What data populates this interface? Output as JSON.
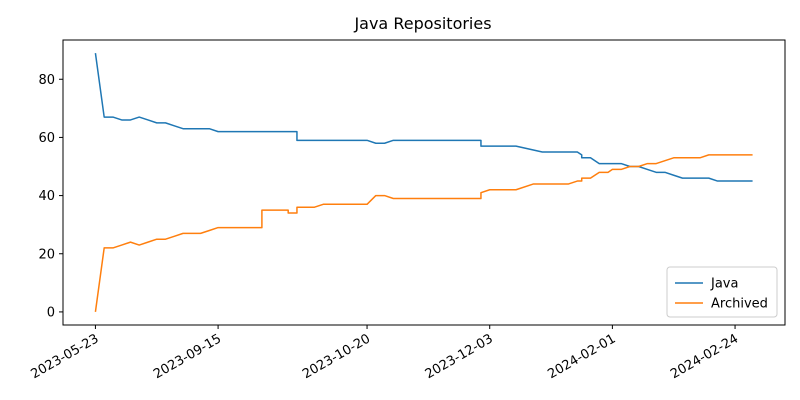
{
  "chart_data": {
    "type": "line",
    "title": "Java Repositories",
    "xlabel": "",
    "ylabel": "",
    "x_tick_labels": [
      "2023-05-23",
      "2023-09-15",
      "2023-10-20",
      "2023-12-03",
      "2024-02-01",
      "2024-02-24"
    ],
    "x_tick_index": [
      0,
      14,
      31,
      45,
      59,
      73
    ],
    "x_range_index": [
      -3.7,
      78.7
    ],
    "ylim": [
      -4.5,
      93.5
    ],
    "y_ticks": [
      0,
      20,
      40,
      60,
      80
    ],
    "grid": false,
    "legend_position": "lower-right",
    "series": [
      {
        "name": "Java",
        "color": "#1f77b4",
        "points": [
          [
            0,
            89
          ],
          [
            1,
            67
          ],
          [
            2,
            67
          ],
          [
            3,
            66
          ],
          [
            4,
            66
          ],
          [
            5,
            67
          ],
          [
            6,
            66
          ],
          [
            7,
            65
          ],
          [
            8,
            65
          ],
          [
            9,
            64
          ],
          [
            10,
            63
          ],
          [
            11,
            63
          ],
          [
            12,
            63
          ],
          [
            13,
            63
          ],
          [
            14,
            62
          ],
          [
            15,
            62
          ],
          [
            16,
            62
          ],
          [
            17,
            62
          ],
          [
            18,
            62
          ],
          [
            19,
            62
          ],
          [
            20,
            62
          ],
          [
            21,
            62
          ],
          [
            22,
            62
          ],
          [
            23,
            62
          ],
          [
            23,
            59
          ],
          [
            24,
            59
          ],
          [
            25,
            59
          ],
          [
            26,
            59
          ],
          [
            27,
            59
          ],
          [
            28,
            59
          ],
          [
            29,
            59
          ],
          [
            30,
            59
          ],
          [
            31,
            59
          ],
          [
            32,
            58
          ],
          [
            33,
            58
          ],
          [
            34,
            59
          ],
          [
            35,
            59
          ],
          [
            36,
            59
          ],
          [
            37,
            59
          ],
          [
            38,
            59
          ],
          [
            39,
            59
          ],
          [
            40,
            59
          ],
          [
            41,
            59
          ],
          [
            44,
            59
          ],
          [
            44,
            57
          ],
          [
            46,
            57
          ],
          [
            48,
            57
          ],
          [
            51,
            55
          ],
          [
            53,
            55
          ],
          [
            54,
            55
          ],
          [
            55,
            55
          ],
          [
            55.5,
            54
          ],
          [
            55.5,
            53
          ],
          [
            56.5,
            53
          ],
          [
            57.5,
            51
          ],
          [
            60,
            51
          ],
          [
            61,
            50
          ],
          [
            62,
            50
          ],
          [
            63,
            49
          ],
          [
            64,
            48
          ],
          [
            65,
            48
          ],
          [
            66,
            47
          ],
          [
            67,
            46
          ],
          [
            68,
            46
          ],
          [
            69,
            46
          ],
          [
            70,
            46
          ],
          [
            71,
            45
          ],
          [
            72,
            45
          ],
          [
            73,
            45
          ],
          [
            74,
            45
          ],
          [
            75,
            45
          ]
        ]
      },
      {
        "name": "Archived",
        "color": "#ff7f0e",
        "points": [
          [
            0,
            0
          ],
          [
            1,
            22
          ],
          [
            2,
            22
          ],
          [
            3,
            23
          ],
          [
            4,
            24
          ],
          [
            5,
            23
          ],
          [
            6,
            24
          ],
          [
            7,
            25
          ],
          [
            8,
            25
          ],
          [
            9,
            26
          ],
          [
            10,
            27
          ],
          [
            11,
            27
          ],
          [
            12,
            27
          ],
          [
            13,
            28
          ],
          [
            14,
            29
          ],
          [
            15,
            29
          ],
          [
            16,
            29
          ],
          [
            17,
            29
          ],
          [
            18,
            29
          ],
          [
            19,
            29
          ],
          [
            19,
            35
          ],
          [
            20,
            35
          ],
          [
            21,
            35
          ],
          [
            22,
            35
          ],
          [
            22,
            34
          ],
          [
            23,
            34
          ],
          [
            23,
            36
          ],
          [
            24,
            36
          ],
          [
            25,
            36
          ],
          [
            26,
            37
          ],
          [
            27,
            37
          ],
          [
            28,
            37
          ],
          [
            29,
            37
          ],
          [
            30,
            37
          ],
          [
            31,
            37
          ],
          [
            32,
            40
          ],
          [
            33,
            40
          ],
          [
            34,
            39
          ],
          [
            35,
            39
          ],
          [
            36,
            39
          ],
          [
            37,
            39
          ],
          [
            38,
            39
          ],
          [
            39,
            39
          ],
          [
            40,
            39
          ],
          [
            41,
            39
          ],
          [
            42,
            39
          ],
          [
            44,
            39
          ],
          [
            44,
            41
          ],
          [
            45,
            42
          ],
          [
            47,
            42
          ],
          [
            48,
            42
          ],
          [
            50,
            44
          ],
          [
            52,
            44
          ],
          [
            53,
            44
          ],
          [
            54,
            44
          ],
          [
            55,
            45
          ],
          [
            55.5,
            45
          ],
          [
            55.5,
            46
          ],
          [
            56.5,
            46
          ],
          [
            57.5,
            48
          ],
          [
            58.5,
            48
          ],
          [
            59,
            49
          ],
          [
            60,
            49
          ],
          [
            61,
            50
          ],
          [
            62,
            50
          ],
          [
            63,
            51
          ],
          [
            64,
            51
          ],
          [
            65,
            52
          ],
          [
            66,
            53
          ],
          [
            67,
            53
          ],
          [
            68,
            53
          ],
          [
            69,
            53
          ],
          [
            70,
            54
          ],
          [
            71,
            54
          ],
          [
            72,
            54
          ],
          [
            73,
            54
          ],
          [
            74,
            54
          ],
          [
            75,
            54
          ]
        ]
      }
    ]
  }
}
